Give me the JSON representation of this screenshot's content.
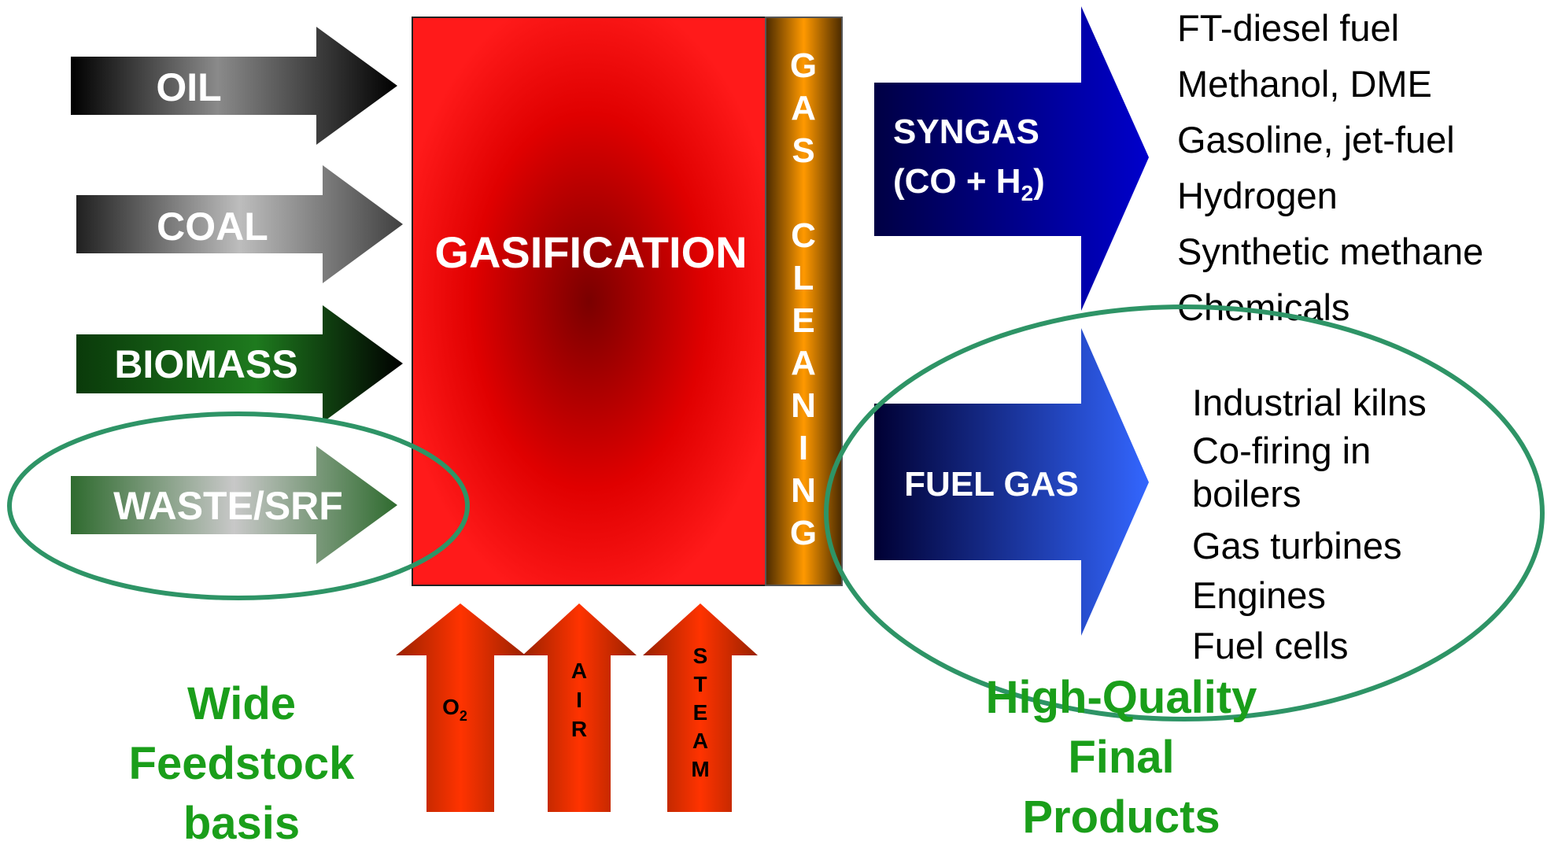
{
  "feedstocks": {
    "oil": "OIL",
    "coal": "COAL",
    "biomass": "BIOMASS",
    "waste": "WASTE/SRF"
  },
  "process": {
    "gasification": "GASIFICATION",
    "gas_cleaning_letters": [
      "G",
      "A",
      "S",
      "",
      "C",
      "L",
      "E",
      "A",
      "N",
      "I",
      "N",
      "G"
    ]
  },
  "agents": {
    "o2": "O",
    "o2_sub": "2",
    "air_letters": [
      "A",
      "I",
      "R"
    ],
    "steam_letters": [
      "S",
      "T",
      "E",
      "A",
      "M"
    ]
  },
  "outputs": {
    "syngas_line1": "SYNGAS",
    "syngas_line2_prefix": "(CO + H",
    "syngas_line2_sub": "2",
    "syngas_line2_suffix": ")",
    "fuel_gas": "FUEL GAS"
  },
  "syngas_products": [
    "FT-diesel fuel",
    "Methanol, DME",
    "Gasoline, jet-fuel",
    "Hydrogen",
    "Synthetic methane",
    "Chemicals"
  ],
  "fuel_gas_products": [
    "Industrial kilns",
    "Co-firing in",
    "boilers",
    "Gas turbines",
    "Engines",
    "Fuel cells"
  ],
  "captions": {
    "left": [
      "Wide",
      "Feedstock",
      "basis"
    ],
    "right": [
      "High-Quality",
      "Final",
      "Products"
    ]
  },
  "colors": {
    "gasifier_red": "#ff1a1a",
    "gasifier_center": "#7a0000",
    "cleaning_orange": "#ff9900",
    "ellipse_green": "#2e9466",
    "caption_green": "#1a9e1a",
    "syngas_blue": "#0000cc",
    "fuel_gas_blue": "#3366ff",
    "agent_orange": "#ff3300"
  }
}
